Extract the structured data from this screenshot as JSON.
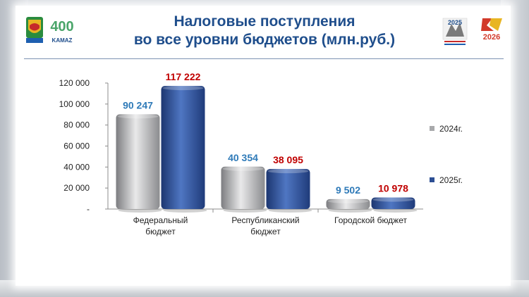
{
  "title_line1": "Налоговые поступления",
  "title_line2": "во все  уровни бюджетов (млн.руб.)",
  "logos": {
    "left_icon": "city-coat-of-arms-icon",
    "left_big_text": "400",
    "left_small_text": "KAMAZ",
    "right_icon": "year-of-defender-emblem-icon",
    "right_text_a": "2025",
    "right_text_b": "2026"
  },
  "colors": {
    "title": "#1f4e8c",
    "series_2024": "#a8a9ab",
    "series_2025": "#2c4f94",
    "label_2024": "#2e7ab8",
    "label_2025": "#c00000"
  },
  "chart_data": {
    "type": "bar",
    "categories": [
      [
        "Федеральный",
        "бюджет"
      ],
      [
        "Республиканский",
        "бюджет"
      ],
      [
        "Городской бюджет"
      ]
    ],
    "series": [
      {
        "name": "2024г.",
        "values": [
          90247,
          40354,
          9502
        ],
        "labels": [
          "90 247",
          "40 354",
          "9 502"
        ]
      },
      {
        "name": "2025г.",
        "values": [
          117222,
          38095,
          10978
        ],
        "labels": [
          "117 222",
          "38 095",
          "10 978"
        ]
      }
    ],
    "ylim": [
      0,
      120000
    ],
    "yticks": [
      0,
      20000,
      40000,
      60000,
      80000,
      100000,
      120000
    ],
    "ytick_labels": [
      "-",
      "20 000",
      "40 000",
      "60 000",
      "80 000",
      "100 000",
      "120 000"
    ],
    "legend_position": "right",
    "grid": false
  }
}
